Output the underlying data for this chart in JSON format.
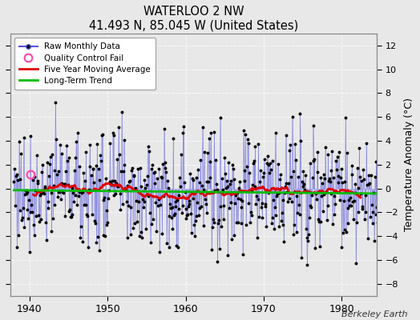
{
  "title": "WATERLOO 2 NW",
  "subtitle": "41.493 N, 85.045 W (United States)",
  "ylabel": "Temperature Anomaly (°C)",
  "credit": "Berkeley Earth",
  "xlim": [
    1937.5,
    1984.5
  ],
  "ylim": [
    -9,
    13
  ],
  "yticks": [
    -8,
    -6,
    -4,
    -2,
    0,
    2,
    4,
    6,
    8,
    10,
    12
  ],
  "xticks": [
    1940,
    1950,
    1960,
    1970,
    1980
  ],
  "bg_color": "#e8e8e8",
  "grid_color": "#d0d0d0",
  "raw_line_color": "#5555dd",
  "raw_dot_color": "#000000",
  "qc_fail_color": "#ff44aa",
  "moving_avg_color": "#dd0000",
  "trend_color": "#00bb00",
  "seed": 77,
  "n_years": 47,
  "start_year": 1938,
  "noise_std": 2.5,
  "trend_slope": -0.008,
  "qc_year": 1940.1,
  "qc_val": 1.2
}
